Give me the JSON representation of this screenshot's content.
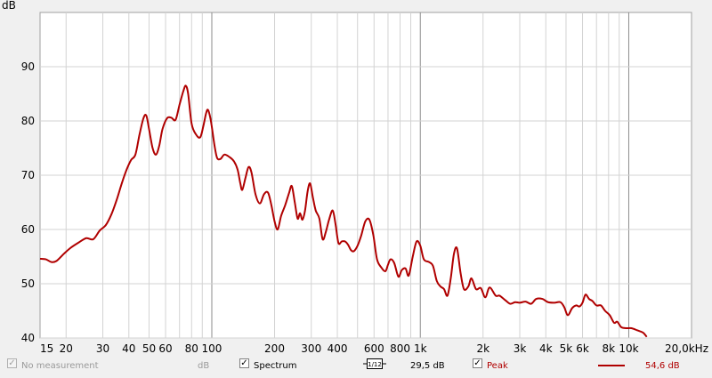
{
  "chart_data": {
    "type": "line",
    "ylabel": "dB",
    "xscale": "log",
    "xlim": [
      15,
      20000
    ],
    "ylim": [
      40,
      100
    ],
    "grid": true,
    "y_ticks": [
      {
        "value": 40,
        "label": "40"
      },
      {
        "value": 50,
        "label": "50"
      },
      {
        "value": 60,
        "label": "60"
      },
      {
        "value": 70,
        "label": "70"
      },
      {
        "value": 80,
        "label": "80"
      },
      {
        "value": 90,
        "label": "90"
      }
    ],
    "x_ticks": [
      {
        "value": 15,
        "label": "15"
      },
      {
        "value": 20,
        "label": "20"
      },
      {
        "value": 30,
        "label": "30"
      },
      {
        "value": 40,
        "label": "40"
      },
      {
        "value": 50,
        "label": "50"
      },
      {
        "value": 60,
        "label": "60"
      },
      {
        "value": 80,
        "label": "80"
      },
      {
        "value": 100,
        "label": "100"
      },
      {
        "value": 200,
        "label": "200"
      },
      {
        "value": 300,
        "label": "300"
      },
      {
        "value": 400,
        "label": "400"
      },
      {
        "value": 600,
        "label": "600"
      },
      {
        "value": 800,
        "label": "800"
      },
      {
        "value": 1000,
        "label": "1k"
      },
      {
        "value": 2000,
        "label": "2k"
      },
      {
        "value": 3000,
        "label": "3k"
      },
      {
        "value": 4000,
        "label": "4k"
      },
      {
        "value": 5000,
        "label": "5k"
      },
      {
        "value": 6000,
        "label": "6k"
      },
      {
        "value": 8000,
        "label": "8k"
      },
      {
        "value": 10000,
        "label": "10k"
      },
      {
        "value": 20000,
        "label": "20,0kHz"
      }
    ],
    "series": [
      {
        "name": "Peak",
        "color": "#b00000",
        "points": [
          [
            15,
            54.6
          ],
          [
            16,
            54.5
          ],
          [
            17,
            54.0
          ],
          [
            18,
            54.2
          ],
          [
            19.5,
            55.5
          ],
          [
            21,
            56.6
          ],
          [
            23,
            57.6
          ],
          [
            25,
            58.4
          ],
          [
            27,
            58.2
          ],
          [
            29,
            59.8
          ],
          [
            31,
            60.8
          ],
          [
            33,
            62.8
          ],
          [
            35,
            65.5
          ],
          [
            37,
            68.5
          ],
          [
            39,
            71.0
          ],
          [
            41,
            72.8
          ],
          [
            43,
            73.8
          ],
          [
            45,
            77.5
          ],
          [
            47,
            80.5
          ],
          [
            48.5,
            81.0
          ],
          [
            50,
            78.5
          ],
          [
            52,
            75.0
          ],
          [
            54,
            73.8
          ],
          [
            56,
            75.5
          ],
          [
            58,
            78.5
          ],
          [
            61,
            80.5
          ],
          [
            64,
            80.6
          ],
          [
            67,
            80.2
          ],
          [
            70,
            83.0
          ],
          [
            73,
            85.5
          ],
          [
            75,
            86.5
          ],
          [
            77,
            85.0
          ],
          [
            80,
            79.5
          ],
          [
            84,
            77.5
          ],
          [
            88,
            77.0
          ],
          [
            91,
            79.0
          ],
          [
            94,
            81.5
          ],
          [
            96,
            82.0
          ],
          [
            99,
            80.0
          ],
          [
            103,
            75.5
          ],
          [
            106,
            73.2
          ],
          [
            110,
            73.0
          ],
          [
            115,
            73.8
          ],
          [
            122,
            73.3
          ],
          [
            128,
            72.5
          ],
          [
            133,
            71.0
          ],
          [
            137,
            68.5
          ],
          [
            140,
            67.3
          ],
          [
            145,
            69.5
          ],
          [
            150,
            71.5
          ],
          [
            155,
            70.5
          ],
          [
            162,
            66.5
          ],
          [
            170,
            64.8
          ],
          [
            178,
            66.5
          ],
          [
            186,
            66.8
          ],
          [
            193,
            64.5
          ],
          [
            200,
            61.5
          ],
          [
            207,
            60.0
          ],
          [
            215,
            62.5
          ],
          [
            225,
            64.5
          ],
          [
            235,
            66.8
          ],
          [
            242,
            68.0
          ],
          [
            250,
            65.0
          ],
          [
            258,
            62.0
          ],
          [
            265,
            63.0
          ],
          [
            272,
            61.8
          ],
          [
            280,
            63.5
          ],
          [
            288,
            67.0
          ],
          [
            296,
            68.5
          ],
          [
            305,
            66.0
          ],
          [
            315,
            63.5
          ],
          [
            328,
            62.0
          ],
          [
            340,
            58.2
          ],
          [
            352,
            59.5
          ],
          [
            365,
            61.8
          ],
          [
            380,
            63.5
          ],
          [
            392,
            61.0
          ],
          [
            405,
            57.5
          ],
          [
            420,
            57.8
          ],
          [
            435,
            57.8
          ],
          [
            450,
            57.2
          ],
          [
            465,
            56.2
          ],
          [
            480,
            56.0
          ],
          [
            500,
            57.0
          ],
          [
            520,
            58.8
          ],
          [
            545,
            61.5
          ],
          [
            570,
            61.8
          ],
          [
            595,
            59.0
          ],
          [
            620,
            54.5
          ],
          [
            650,
            53.0
          ],
          [
            680,
            52.3
          ],
          [
            700,
            53.5
          ],
          [
            720,
            54.5
          ],
          [
            750,
            53.8
          ],
          [
            785,
            51.3
          ],
          [
            815,
            52.5
          ],
          [
            850,
            52.8
          ],
          [
            880,
            51.5
          ],
          [
            920,
            55.0
          ],
          [
            960,
            57.8
          ],
          [
            1000,
            57.0
          ],
          [
            1040,
            54.5
          ],
          [
            1100,
            54.0
          ],
          [
            1150,
            53.3
          ],
          [
            1200,
            50.5
          ],
          [
            1250,
            49.5
          ],
          [
            1300,
            49.0
          ],
          [
            1350,
            47.8
          ],
          [
            1400,
            51.0
          ],
          [
            1450,
            55.5
          ],
          [
            1500,
            56.5
          ],
          [
            1560,
            52.0
          ],
          [
            1620,
            49.0
          ],
          [
            1700,
            49.5
          ],
          [
            1760,
            51.0
          ],
          [
            1850,
            49.0
          ],
          [
            1950,
            49.2
          ],
          [
            2050,
            47.5
          ],
          [
            2150,
            49.3
          ],
          [
            2300,
            47.8
          ],
          [
            2400,
            47.8
          ],
          [
            2550,
            47.0
          ],
          [
            2700,
            46.3
          ],
          [
            2850,
            46.6
          ],
          [
            3000,
            46.5
          ],
          [
            3200,
            46.7
          ],
          [
            3400,
            46.3
          ],
          [
            3600,
            47.2
          ],
          [
            3850,
            47.2
          ],
          [
            4100,
            46.6
          ],
          [
            4400,
            46.5
          ],
          [
            4700,
            46.6
          ],
          [
            4900,
            45.7
          ],
          [
            5100,
            44.2
          ],
          [
            5350,
            45.5
          ],
          [
            5600,
            46.0
          ],
          [
            5800,
            45.8
          ],
          [
            6000,
            46.5
          ],
          [
            6200,
            48.0
          ],
          [
            6450,
            47.2
          ],
          [
            6700,
            46.8
          ],
          [
            7000,
            46.0
          ],
          [
            7350,
            46.0
          ],
          [
            7700,
            45.0
          ],
          [
            8100,
            44.2
          ],
          [
            8500,
            42.8
          ],
          [
            8800,
            43.0
          ],
          [
            9200,
            42.0
          ],
          [
            9700,
            41.8
          ],
          [
            10300,
            41.8
          ],
          [
            11000,
            41.4
          ],
          [
            11700,
            41.0
          ],
          [
            12200,
            40.2
          ]
        ]
      }
    ]
  },
  "legend": {
    "no_measurement_label": "No measurement",
    "no_measurement_unit": "dB",
    "spectrum_label": "Spectrum",
    "smoothing_value": "29,5 dB",
    "smoothing_icon": "one-twelfth-octave-icon",
    "smoothing_icon_text": "1/12",
    "peak_label": "Peak",
    "peak_value": "54,6 dB",
    "peak_color": "#b00000"
  }
}
